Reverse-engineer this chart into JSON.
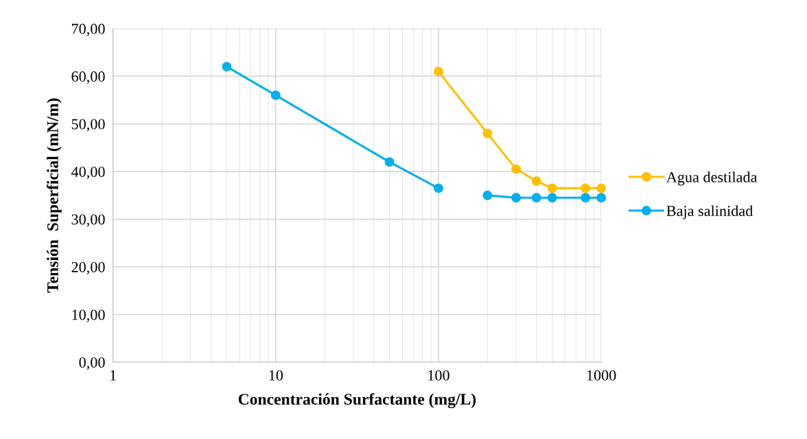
{
  "chart_data": {
    "type": "line",
    "xlabel": "Concentración Surfactante (mg/L)",
    "ylabel": "Tensión  Superficial (mN/m)",
    "log": "x",
    "xlim": [
      1,
      1000
    ],
    "xticks": [
      1,
      10,
      100,
      1000
    ],
    "ylim": [
      0,
      70
    ],
    "yticks": [
      {
        "value": 0,
        "label": "0,00"
      },
      {
        "value": 10,
        "label": "10,00"
      },
      {
        "value": 20,
        "label": "20,00"
      },
      {
        "value": 30,
        "label": "30,00"
      },
      {
        "value": 40,
        "label": "40,00"
      },
      {
        "value": 50,
        "label": "50,00"
      },
      {
        "value": 60,
        "label": "60,00"
      },
      {
        "value": 70,
        "label": "70,00"
      }
    ],
    "grid": true,
    "legend": "right",
    "marker": "circle",
    "line_style": "solid",
    "series": [
      {
        "name": "Agua destilada",
        "color": "#ffc000",
        "x": [
          100,
          200,
          300,
          400,
          500,
          800,
          1000
        ],
        "values": [
          61,
          48,
          40.5,
          38,
          36.5,
          36.5,
          36.5
        ]
      },
      {
        "name": "Baja salinidad",
        "color": "#00b0f0",
        "x": [
          5,
          10,
          50,
          100,
          150,
          200,
          300,
          400,
          500,
          800,
          1000
        ],
        "values": [
          62,
          56,
          42,
          36.5,
          null,
          35,
          34.5,
          34.5,
          34.5,
          34.5,
          34.5
        ]
      }
    ]
  }
}
